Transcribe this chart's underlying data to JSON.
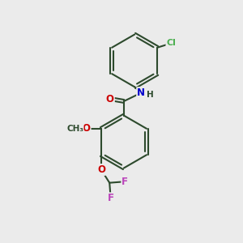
{
  "background_color": "#ebebeb",
  "bond_color": "#2d4a2d",
  "bond_width": 1.5,
  "atom_colors": {
    "O": "#cc0000",
    "N": "#0000cc",
    "Cl": "#4caf50",
    "F": "#bb44bb",
    "C": "#2d4a2d",
    "H": "#2d4a2d"
  },
  "font_size": 8.5,
  "fig_width": 3.0,
  "fig_height": 3.0,
  "dpi": 100
}
